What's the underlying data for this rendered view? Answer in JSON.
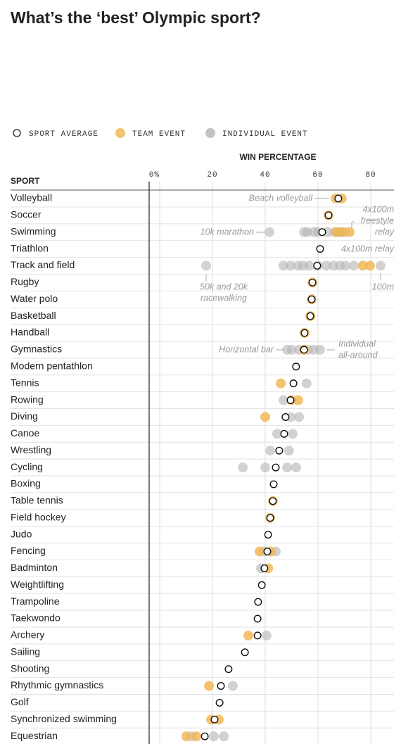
{
  "chart_data": {
    "type": "dot",
    "title": "What’s the ‘best’ Olympic sport?",
    "x_label": "WIN PERCENTAGE",
    "category_label": "SPORT",
    "xlim": [
      -4,
      92
    ],
    "xticks": [
      {
        "value": 0,
        "label": "0%"
      },
      20,
      40,
      60,
      80
    ],
    "grid": true,
    "categories": [
      "Volleyball",
      "Soccer",
      "Swimming",
      "Triathlon",
      "Track and field",
      "Rugby",
      "Water polo",
      "Basketball",
      "Handball",
      "Gymnastics",
      "Modern pentathlon",
      "Tennis",
      "Rowing",
      "Diving",
      "Canoe",
      "Wrestling",
      "Cycling",
      "Boxing",
      "Table tennis",
      "Field hockey",
      "Judo",
      "Fencing",
      "Badminton",
      "Weightlifting",
      "Trampoline",
      "Taekwondo",
      "Archery",
      "Sailing",
      "Shooting",
      "Rhythmic gymnastics",
      "Golf",
      "Synchronized swimming",
      "Equestrian"
    ],
    "series": [
      {
        "name": "SPORT AVERAGE",
        "color": "#ffffff",
        "values": [
          67.7,
          64,
          61.6,
          60.8,
          59.7,
          57.9,
          57.6,
          57.1,
          54.9,
          54.7,
          51.7,
          50.7,
          49.6,
          47.7,
          47.2,
          45.3,
          44,
          43.2,
          42.9,
          41.9,
          41.1,
          40.8,
          39.7,
          38.7,
          37.3,
          37.1,
          37.1,
          32.3,
          26.1,
          23.2,
          22.7,
          20.8,
          17.1
        ]
      },
      {
        "name": "TEAM EVENT",
        "color": "#f0b44c",
        "values": [
          [
            66.7,
            69
          ],
          [
            64
          ],
          [
            67,
            69,
            72
          ],
          [],
          [
            77,
            79.7
          ],
          [
            57.9
          ],
          [
            57.6
          ],
          [
            57.1
          ],
          [
            54.9
          ],
          [
            54.7
          ],
          [],
          [
            45.9
          ],
          [
            49.9,
            52.5
          ],
          [
            40
          ],
          [],
          [],
          [],
          [],
          [
            42.9
          ],
          [
            41.9
          ],
          [],
          [
            37.9,
            42.1
          ],
          [
            41.1
          ],
          [],
          [],
          [],
          [
            33.6
          ],
          [],
          [],
          [
            18.7
          ],
          [],
          [
            19.5,
            22.4
          ],
          [
            10.1,
            13.9
          ]
        ]
      },
      {
        "name": "INDIVIDUAL EVENT",
        "color": "#b4b4b4",
        "values": [
          [],
          [],
          [
            41.6,
            54.7,
            56,
            58.4,
            60,
            63.7,
            66.4,
            68,
            70.1
          ],
          [],
          [
            17.6,
            46.9,
            49.6,
            52.5,
            54.4,
            56.8,
            60,
            63.2,
            65.9,
            68.3,
            70.4,
            73.6,
            83.7
          ],
          [],
          [],
          [],
          [],
          [
            48.3,
            50.1,
            52.8,
            56.3,
            58.4,
            60.8
          ],
          [],
          [
            55.7
          ],
          [
            46.9
          ],
          [
            49.6,
            52.8
          ],
          [
            44.5,
            50.4
          ],
          [
            41.9,
            49
          ],
          [
            31.5,
            40,
            48.3,
            51.7
          ],
          [],
          [],
          [],
          [],
          [
            39.7,
            44
          ],
          [
            38.4
          ],
          [],
          [],
          [],
          [
            40.5
          ],
          [],
          [],
          [
            27.7
          ],
          [],
          [],
          [
            12,
            20.5,
            24.3
          ]
        ]
      }
    ],
    "annotations": [
      {
        "lines": [
          "Beach volleyball"
        ]
      },
      {
        "lines": [
          "4x100m",
          "freestyle",
          "relay"
        ]
      },
      {
        "lines": [
          "10k marathon"
        ]
      },
      {
        "lines": [
          "4x100m relay"
        ]
      },
      {
        "lines": [
          "50k and 20k",
          "racewalking"
        ]
      },
      {
        "lines": [
          "100m"
        ]
      },
      {
        "lines": [
          "Horizontal bar"
        ]
      },
      {
        "lines": [
          "Individual",
          "all-around"
        ]
      }
    ]
  }
}
